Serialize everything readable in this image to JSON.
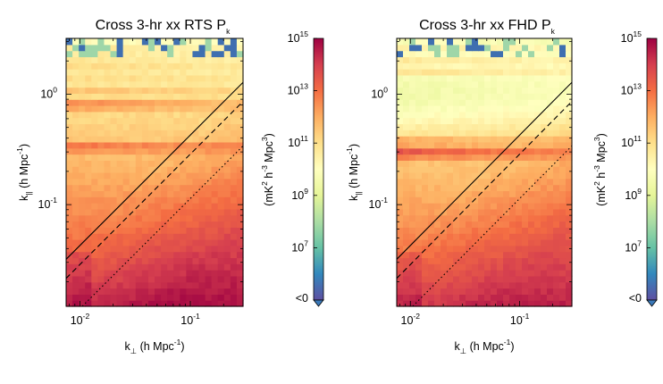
{
  "chart_data": [
    {
      "type": "heatmap",
      "title_main": "Cross 3-hr xx RTS P",
      "title_sub": "k",
      "xlabel": {
        "k": "k",
        "sub": "⊥",
        "rest": " (h Mpc",
        "exp": "-1",
        "close": ")"
      },
      "ylabel": {
        "k": "k",
        "sub": "||",
        "rest": " (h Mpc",
        "exp": "-1",
        "close": ")"
      },
      "x_scale": "log",
      "y_scale": "log",
      "xlim": [
        0.0075,
        0.3
      ],
      "ylim": [
        0.012,
        3.2
      ],
      "x_ticks": [
        {
          "value": 0.01,
          "label": "10",
          "exp": "-2"
        },
        {
          "value": 0.1,
          "label": "10",
          "exp": "-1"
        }
      ],
      "y_ticks": [
        {
          "value": 0.1,
          "label": "10",
          "exp": "-1"
        },
        {
          "value": 1,
          "label": "10",
          "exp": "0"
        }
      ],
      "colorbar": {
        "label": {
          "a": "(mK",
          "b": "2",
          "c": " h",
          "d": "-3",
          "e": " Mpc",
          "f": "3",
          "g": ")"
        },
        "scale": "log",
        "range": [
          100000.0,
          1000000000000000.0
        ],
        "ticks": [
          {
            "value": 1000000000000000.0,
            "label": "10",
            "exp": "15"
          },
          {
            "value": 10000000000000.0,
            "label": "10",
            "exp": "13"
          },
          {
            "value": 100000000000.0,
            "label": "10",
            "exp": "11"
          },
          {
            "value": 1000000000.0,
            "label": "10",
            "exp": "9"
          },
          {
            "value": 10000000.0,
            "label": "10",
            "exp": "7"
          }
        ],
        "below_label": "<0",
        "colormap": [
          "#5e4fa2",
          "#3288bd",
          "#66c2a5",
          "#abdda4",
          "#e6f598",
          "#ffffbf",
          "#fee08b",
          "#fdae61",
          "#f46d43",
          "#d53e4f",
          "#9e0142"
        ]
      },
      "overlay_lines": [
        {
          "style": "solid",
          "points": [
            [
              0.0075,
              0.032
            ],
            [
              0.3,
              1.28
            ]
          ]
        },
        {
          "style": "dashed",
          "points": [
            [
              0.0075,
              0.0215
            ],
            [
              0.3,
              0.86
            ]
          ]
        },
        {
          "style": "dotted",
          "points": [
            [
              0.0105,
              0.012
            ],
            [
              0.3,
              0.34
            ]
          ]
        }
      ],
      "data_description": "Estimated log10 power over (k_perp, k_par): high (~1e13-1e14) at low k_par and low k_perp, decreasing toward high k_par (~1e10), with horizontal bright bands at k_par ~0.33, 0.8, 1.1-3 and negative/noisy values near the top.",
      "model": {
        "kpar_bands": [
          [
            0.33,
            0.035,
            2.0
          ],
          [
            0.81,
            0.05,
            1.8
          ],
          [
            1.12,
            0.03,
            1.0
          ],
          [
            1.48,
            0.03,
            0.9
          ],
          [
            1.9,
            0.04,
            0.9
          ],
          [
            2.5,
            0.04,
            0.8
          ]
        ],
        "base_low_kpar": 13.9,
        "valley": 0.0
      }
    },
    {
      "type": "heatmap",
      "title_main": "Cross 3-hr xx FHD P",
      "title_sub": "k",
      "xlabel": {
        "k": "k",
        "sub": "⊥",
        "rest": " (h Mpc",
        "exp": "-1",
        "close": ")"
      },
      "ylabel": {
        "k": "k",
        "sub": "||",
        "rest": " (h Mpc",
        "exp": "-1",
        "close": ")"
      },
      "x_scale": "log",
      "y_scale": "log",
      "xlim": [
        0.0075,
        0.3
      ],
      "ylim": [
        0.012,
        3.2
      ],
      "x_ticks": [
        {
          "value": 0.01,
          "label": "10",
          "exp": "-2"
        },
        {
          "value": 0.1,
          "label": "10",
          "exp": "-1"
        }
      ],
      "y_ticks": [
        {
          "value": 0.1,
          "label": "10",
          "exp": "-1"
        },
        {
          "value": 1,
          "label": "10",
          "exp": "0"
        }
      ],
      "colorbar": {
        "label": {
          "a": "(mK",
          "b": "2",
          "c": " h",
          "d": "-3",
          "e": " Mpc",
          "f": "3",
          "g": ")"
        },
        "scale": "log",
        "range": [
          100000.0,
          1000000000000000.0
        ],
        "ticks": [
          {
            "value": 1000000000000000.0,
            "label": "10",
            "exp": "15"
          },
          {
            "value": 10000000000000.0,
            "label": "10",
            "exp": "13"
          },
          {
            "value": 100000000000.0,
            "label": "10",
            "exp": "11"
          },
          {
            "value": 1000000000.0,
            "label": "10",
            "exp": "9"
          },
          {
            "value": 10000000.0,
            "label": "10",
            "exp": "7"
          }
        ],
        "below_label": "<0",
        "colormap": [
          "#5e4fa2",
          "#3288bd",
          "#66c2a5",
          "#abdda4",
          "#e6f598",
          "#ffffbf",
          "#fee08b",
          "#fdae61",
          "#f46d43",
          "#d53e4f",
          "#9e0142"
        ]
      },
      "overlay_lines": [
        {
          "style": "solid",
          "points": [
            [
              0.0075,
              0.032
            ],
            [
              0.3,
              1.28
            ]
          ]
        },
        {
          "style": "dashed",
          "points": [
            [
              0.0075,
              0.0215
            ],
            [
              0.3,
              0.86
            ]
          ]
        },
        {
          "style": "dotted",
          "points": [
            [
              0.0105,
              0.012
            ],
            [
              0.3,
              0.34
            ]
          ]
        }
      ],
      "data_description": "Estimated log10 power over (k_perp, k_par): similar to the RTS panel but with a broad greenish low-power region around k_par 0.5-1.5 and a stronger bright band near k_par ~0.3.",
      "model": {
        "kpar_bands": [
          [
            0.3,
            0.06,
            2.3
          ],
          [
            0.38,
            0.03,
            1.2
          ],
          [
            1.62,
            0.04,
            1.2
          ],
          [
            2.0,
            0.04,
            1.0
          ],
          [
            2.6,
            0.04,
            0.9
          ]
        ],
        "base_low_kpar": 13.6,
        "valley": 1.1
      }
    }
  ]
}
